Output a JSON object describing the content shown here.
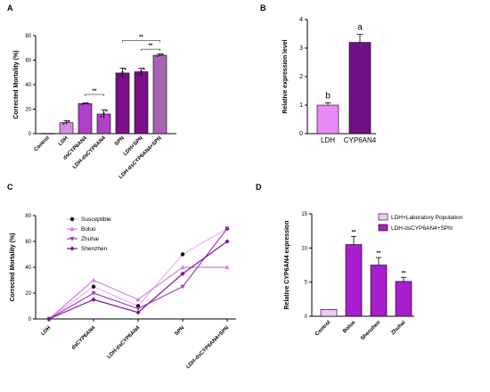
{
  "chart_data": [
    {
      "panel": "A",
      "type": "bar",
      "ylabel": "Corrected Mortality (%)",
      "ylim": [
        0,
        80
      ],
      "yticks": [
        0,
        20,
        40,
        60,
        80
      ],
      "categories": [
        "Control",
        "LDH",
        "dsCYP6AN4",
        "LDH-dsCYP6AN4",
        "SPN",
        "LDH+SPN",
        "LDH-dsCYP6AN4+SPN"
      ],
      "values": [
        0,
        9,
        24.5,
        16,
        49.5,
        50.5,
        64
      ],
      "errors": [
        0,
        1.5,
        0.5,
        3.5,
        4,
        3,
        1
      ],
      "colors": [
        "#d889e8",
        "#d889e8",
        "#b040c8",
        "#b040c8",
        "#7c0f87",
        "#7c0f87",
        "#a665b0"
      ],
      "brackets": [
        {
          "from": 2,
          "to": 3,
          "label": "**"
        },
        {
          "from": 4,
          "to": 6,
          "label": "**"
        },
        {
          "from": 5,
          "to": 6,
          "label": "**"
        }
      ]
    },
    {
      "panel": "B",
      "type": "bar",
      "ylabel": "Relative expression level",
      "ylim": [
        0,
        4
      ],
      "yticks": [
        0,
        1,
        2,
        3,
        4
      ],
      "categories": [
        "LDH",
        "CYP6AN4"
      ],
      "values": [
        1.0,
        3.2
      ],
      "errors": [
        0.08,
        0.28
      ],
      "colors": [
        "#e889f4",
        "#730f87"
      ],
      "letters": [
        "b",
        "a"
      ]
    },
    {
      "panel": "C",
      "type": "line",
      "ylabel": "Corrected Mortality (%)",
      "ylim": [
        0,
        80
      ],
      "yticks": [
        0,
        20,
        40,
        60,
        80
      ],
      "categories": [
        "LDH",
        "dsCYP6AN4",
        "LDH-dsCYP6AN4",
        "SPN",
        "LDH-dsCYP6AN4+SPN"
      ],
      "series": [
        {
          "name": "Susceptible",
          "marker": "circle",
          "color": "#e5b5ee",
          "values": [
            0,
            25,
            10,
            50,
            70
          ]
        },
        {
          "name": "Boluo",
          "marker": "triangle",
          "color": "#cf82e0",
          "values": [
            0,
            30,
            15,
            40,
            40
          ]
        },
        {
          "name": "Zhuhai",
          "marker": "triangle-down",
          "color": "#a53ebf",
          "values": [
            0,
            20,
            8,
            25,
            70
          ]
        },
        {
          "name": "Shenzhen",
          "marker": "diamond",
          "color": "#7b1490",
          "values": [
            0,
            15,
            5,
            35,
            60
          ]
        }
      ],
      "legend_position": "top-left"
    },
    {
      "panel": "D",
      "type": "bar",
      "ylabel": "Relative CYP6AN4 expression",
      "ylim": [
        0,
        15
      ],
      "yticks": [
        0,
        5,
        10,
        15
      ],
      "categories": [
        "Control",
        "Boluo",
        "Shenzhen",
        "Zhuhai"
      ],
      "values": [
        1.0,
        10.5,
        7.5,
        5.1
      ],
      "errors": [
        0,
        1.2,
        1.1,
        0.6
      ],
      "colors": [
        "#f1c8f7",
        "#a81dce",
        "#a81dce",
        "#a81dce"
      ],
      "significance": [
        "",
        "**",
        "**",
        "**"
      ],
      "legend": [
        {
          "label": "LDH+Laboratory Population",
          "color": "#f1c8f7"
        },
        {
          "label": "LDH-dsCYP6AN4+SPN",
          "color": "#a81dce"
        }
      ],
      "legend_position": "top-right"
    }
  ]
}
